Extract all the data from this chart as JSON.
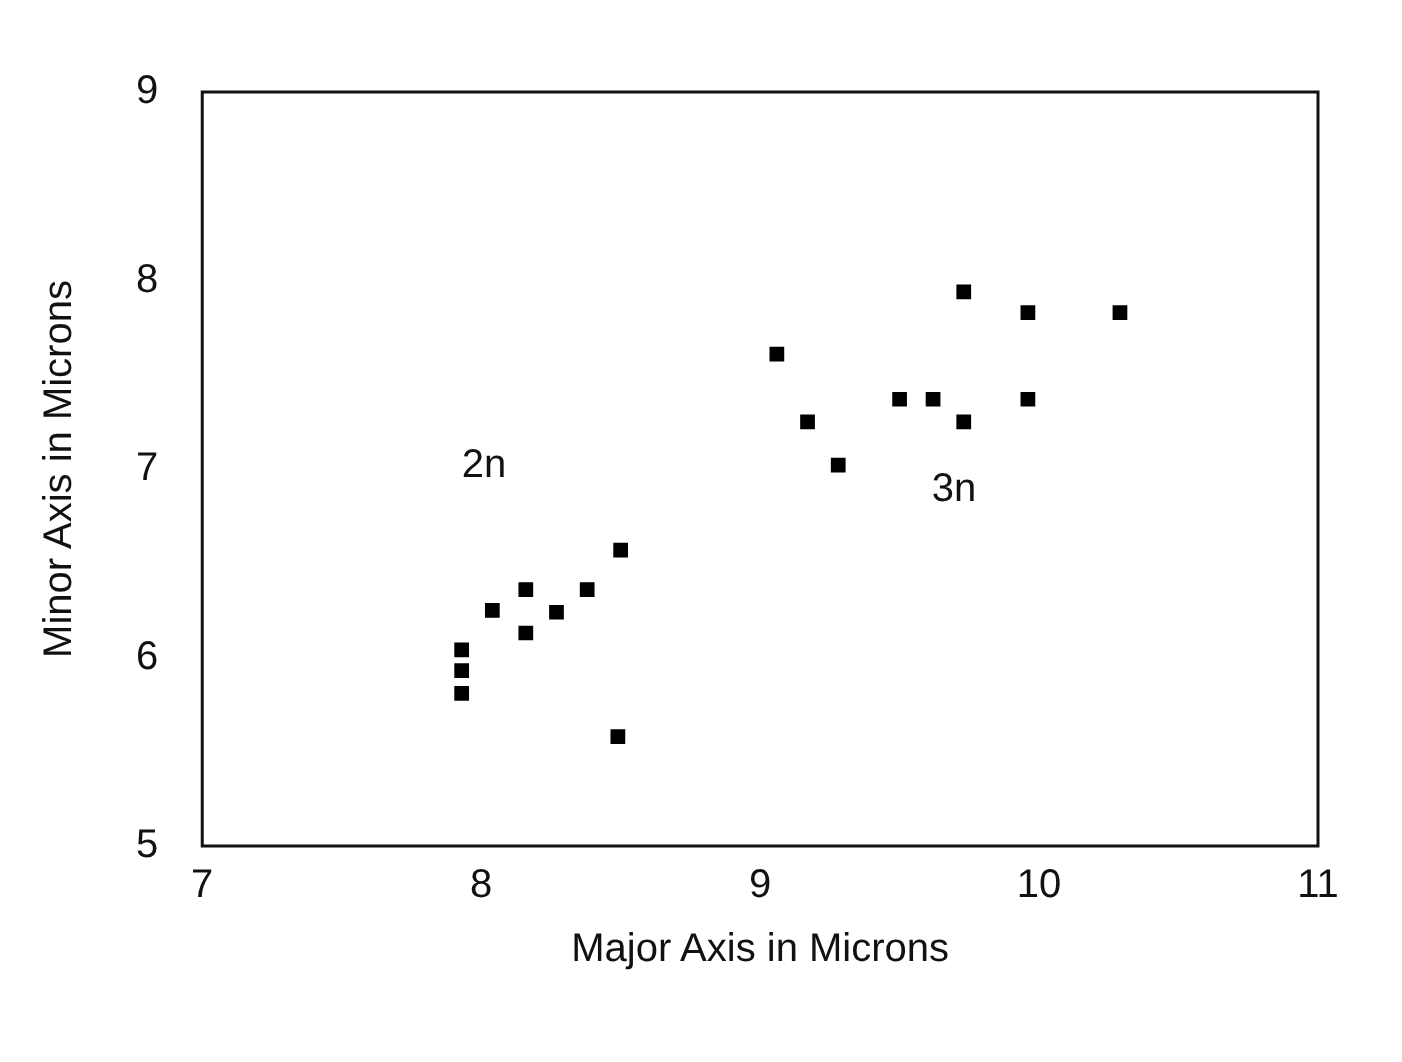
{
  "chart_data": {
    "type": "scatter",
    "xlabel": "Major Axis in Microns",
    "ylabel": "Minor Axis in Microns",
    "xlim": [
      7,
      11
    ],
    "xticks": [
      7,
      8,
      9,
      10,
      11
    ],
    "ylim": [
      5,
      9
    ],
    "yticks": [
      5,
      6,
      7,
      8,
      9
    ],
    "grid": false,
    "legend": false,
    "marker": "square",
    "series": [
      {
        "color": "#000000",
        "x": [
          7.93,
          7.93,
          7.93,
          8.04,
          8.16,
          8.16,
          8.27,
          8.38,
          8.5,
          8.49,
          9.06,
          9.17,
          9.28,
          9.5,
          9.62,
          9.73,
          9.73,
          9.96,
          9.96,
          10.29
        ],
        "values": [
          6.04,
          5.93,
          5.81,
          6.25,
          6.36,
          6.13,
          6.24,
          6.36,
          6.57,
          5.58,
          7.61,
          7.25,
          7.02,
          7.37,
          7.37,
          7.94,
          7.25,
          7.83,
          7.37,
          7.83
        ]
      }
    ],
    "annotations": [
      "2n",
      "3n"
    ]
  }
}
